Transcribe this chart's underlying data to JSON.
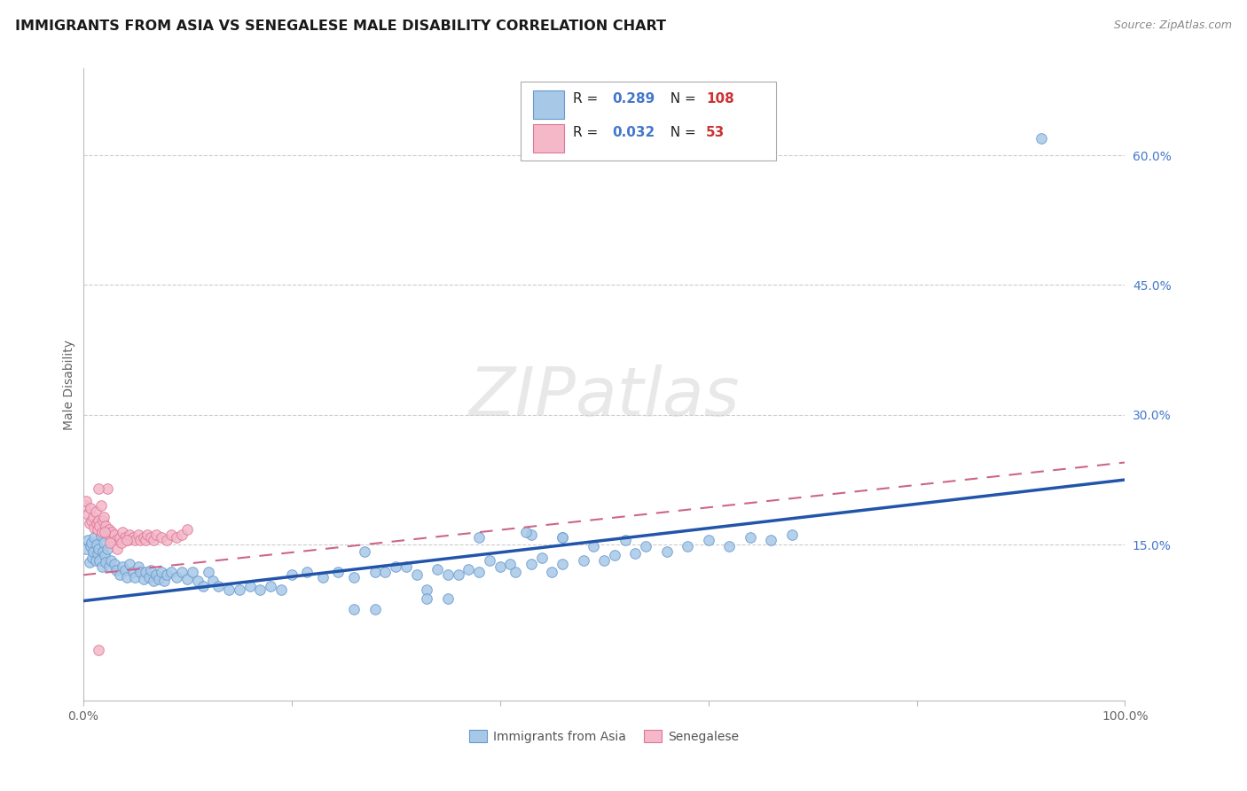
{
  "title": "IMMIGRANTS FROM ASIA VS SENEGALESE MALE DISABILITY CORRELATION CHART",
  "source": "Source: ZipAtlas.com",
  "ylabel": "Male Disability",
  "xlim": [
    0.0,
    1.0
  ],
  "ylim": [
    -0.03,
    0.7
  ],
  "yticks_right": [
    0.15,
    0.3,
    0.45,
    0.6
  ],
  "ytick_labels_right": [
    "15.0%",
    "30.0%",
    "45.0%",
    "60.0%"
  ],
  "blue_color": "#a8c8e8",
  "blue_edge": "#6699cc",
  "blue_line_color": "#2255aa",
  "pink_color": "#f4b8c8",
  "pink_edge": "#dd7799",
  "pink_line_color": "#cc6688",
  "blue_R": "0.289",
  "blue_N": "108",
  "pink_R": "0.032",
  "pink_N": "53",
  "blue_line_x": [
    0.0,
    1.0
  ],
  "blue_line_y": [
    0.085,
    0.225
  ],
  "pink_line_x": [
    0.0,
    1.0
  ],
  "pink_line_y": [
    0.115,
    0.245
  ],
  "watermark": "ZIPatlas",
  "background_color": "#ffffff",
  "grid_color": "#cccccc",
  "right_tick_color": "#4477cc",
  "legend_blue_color": "#4477cc",
  "legend_red_color": "#cc3333",
  "title_fontsize": 11.5,
  "blue_scatter_x": [
    0.003,
    0.005,
    0.006,
    0.007,
    0.008,
    0.009,
    0.01,
    0.011,
    0.012,
    0.013,
    0.014,
    0.015,
    0.016,
    0.017,
    0.018,
    0.019,
    0.02,
    0.021,
    0.022,
    0.023,
    0.025,
    0.027,
    0.03,
    0.032,
    0.035,
    0.038,
    0.04,
    0.042,
    0.045,
    0.048,
    0.05,
    0.053,
    0.055,
    0.058,
    0.06,
    0.063,
    0.065,
    0.068,
    0.07,
    0.073,
    0.075,
    0.078,
    0.08,
    0.085,
    0.09,
    0.095,
    0.1,
    0.105,
    0.11,
    0.115,
    0.12,
    0.125,
    0.13,
    0.14,
    0.15,
    0.16,
    0.17,
    0.18,
    0.19,
    0.2,
    0.215,
    0.23,
    0.245,
    0.26,
    0.28,
    0.3,
    0.32,
    0.34,
    0.36,
    0.38,
    0.4,
    0.415,
    0.43,
    0.45,
    0.46,
    0.48,
    0.5,
    0.51,
    0.53,
    0.54,
    0.56,
    0.58,
    0.6,
    0.62,
    0.64,
    0.66,
    0.68,
    0.29,
    0.31,
    0.35,
    0.37,
    0.39,
    0.41,
    0.44,
    0.46,
    0.49,
    0.52,
    0.46,
    0.43,
    0.33,
    0.27,
    0.38,
    0.35,
    0.33,
    0.26,
    0.28,
    0.425,
    0.92
  ],
  "blue_scatter_y": [
    0.145,
    0.155,
    0.13,
    0.148,
    0.152,
    0.135,
    0.142,
    0.158,
    0.132,
    0.15,
    0.14,
    0.145,
    0.132,
    0.16,
    0.125,
    0.142,
    0.152,
    0.138,
    0.13,
    0.145,
    0.125,
    0.132,
    0.128,
    0.12,
    0.115,
    0.125,
    0.12,
    0.112,
    0.128,
    0.118,
    0.112,
    0.125,
    0.118,
    0.11,
    0.118,
    0.112,
    0.12,
    0.108,
    0.115,
    0.11,
    0.118,
    0.108,
    0.115,
    0.118,
    0.112,
    0.118,
    0.11,
    0.118,
    0.108,
    0.102,
    0.118,
    0.108,
    0.102,
    0.098,
    0.098,
    0.102,
    0.098,
    0.102,
    0.098,
    0.115,
    0.118,
    0.112,
    0.118,
    0.112,
    0.118,
    0.125,
    0.115,
    0.122,
    0.115,
    0.118,
    0.125,
    0.118,
    0.128,
    0.118,
    0.128,
    0.132,
    0.132,
    0.138,
    0.14,
    0.148,
    0.142,
    0.148,
    0.155,
    0.148,
    0.158,
    0.155,
    0.162,
    0.118,
    0.125,
    0.115,
    0.122,
    0.132,
    0.128,
    0.135,
    0.158,
    0.148,
    0.155,
    0.158,
    0.162,
    0.098,
    0.142,
    0.158,
    0.088,
    0.088,
    0.075,
    0.075,
    0.165,
    0.62
  ],
  "pink_scatter_x": [
    0.002,
    0.003,
    0.005,
    0.006,
    0.007,
    0.008,
    0.01,
    0.011,
    0.012,
    0.013,
    0.014,
    0.015,
    0.016,
    0.017,
    0.018,
    0.019,
    0.02,
    0.022,
    0.024,
    0.025,
    0.027,
    0.028,
    0.03,
    0.032,
    0.035,
    0.038,
    0.04,
    0.043,
    0.045,
    0.048,
    0.05,
    0.053,
    0.055,
    0.058,
    0.06,
    0.062,
    0.065,
    0.068,
    0.07,
    0.075,
    0.08,
    0.085,
    0.09,
    0.095,
    0.1,
    0.021,
    0.026,
    0.033,
    0.037,
    0.023,
    0.015,
    0.042,
    0.015
  ],
  "pink_scatter_y": [
    0.195,
    0.2,
    0.185,
    0.175,
    0.192,
    0.178,
    0.182,
    0.17,
    0.188,
    0.175,
    0.168,
    0.178,
    0.172,
    0.195,
    0.165,
    0.178,
    0.182,
    0.172,
    0.165,
    0.168,
    0.158,
    0.165,
    0.162,
    0.155,
    0.158,
    0.165,
    0.158,
    0.155,
    0.162,
    0.158,
    0.155,
    0.162,
    0.155,
    0.158,
    0.155,
    0.162,
    0.158,
    0.155,
    0.162,
    0.158,
    0.155,
    0.162,
    0.158,
    0.162,
    0.168,
    0.165,
    0.152,
    0.145,
    0.152,
    0.215,
    0.215,
    0.155,
    0.028
  ]
}
